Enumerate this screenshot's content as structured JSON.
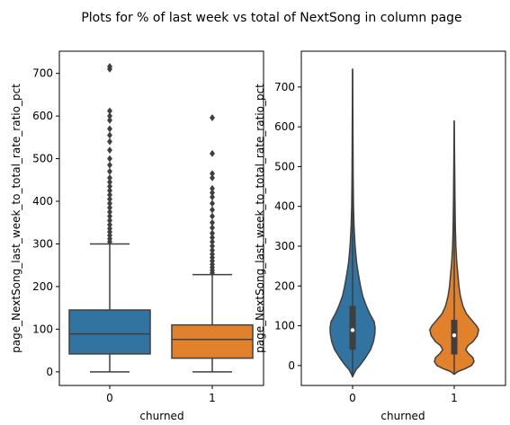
{
  "suptitle": "Plots for % of last week vs total of NextSong in column page",
  "chart_data": [
    {
      "type": "box",
      "xlabel": "churned",
      "ylabel": "page_NextSong_last_week_to_total_rate_ratio_pct",
      "categories": [
        "0",
        "1"
      ],
      "ylim": [
        -32,
        752
      ],
      "yticks": [
        0,
        100,
        200,
        300,
        400,
        500,
        600,
        700
      ],
      "colors": [
        "#3274a1",
        "#e1812c"
      ],
      "boxes": [
        {
          "category": "0",
          "whisker_low": 0,
          "q1": 42,
          "median": 89,
          "q3": 145,
          "whisker_high": 300,
          "outliers": [
            305,
            312,
            320,
            328,
            336,
            345,
            355,
            365,
            375,
            385,
            395,
            405,
            415,
            425,
            435,
            445,
            455,
            470,
            485,
            500,
            520,
            540,
            555,
            570,
            590,
            600,
            612,
            710,
            716
          ]
        },
        {
          "category": "1",
          "whisker_low": 0,
          "q1": 32,
          "median": 76,
          "q3": 110,
          "whisker_high": 228,
          "outliers": [
            232,
            238,
            245,
            252,
            260,
            268,
            276,
            285,
            295,
            305,
            315,
            325,
            338,
            350,
            365,
            380,
            395,
            410,
            420,
            430,
            455,
            465,
            512,
            596
          ]
        }
      ]
    },
    {
      "type": "violin",
      "xlabel": "churned",
      "ylabel": "page_NextSong_last_week_to_total_rate_ratio_pct",
      "categories": [
        "0",
        "1"
      ],
      "ylim": [
        -50,
        790
      ],
      "yticks": [
        0,
        100,
        200,
        300,
        400,
        500,
        600,
        700
      ],
      "colors": [
        "#3274a1",
        "#e1812c"
      ],
      "violins": [
        {
          "category": "0",
          "min": -28,
          "max": 745,
          "q1": 40,
          "median": 89,
          "q3": 150,
          "density": [
            [
              -28,
              0
            ],
            [
              -20,
              0.04
            ],
            [
              -10,
              0.1
            ],
            [
              0,
              0.2
            ],
            [
              20,
              0.36
            ],
            [
              40,
              0.5
            ],
            [
              60,
              0.58
            ],
            [
              80,
              0.62
            ],
            [
              95,
              0.625
            ],
            [
              110,
              0.6
            ],
            [
              130,
              0.48
            ],
            [
              150,
              0.38
            ],
            [
              175,
              0.28
            ],
            [
              200,
              0.22
            ],
            [
              230,
              0.16
            ],
            [
              260,
              0.11
            ],
            [
              300,
              0.07
            ],
            [
              350,
              0.04
            ],
            [
              400,
              0.025
            ],
            [
              480,
              0.015
            ],
            [
              560,
              0.011
            ],
            [
              640,
              0.007
            ],
            [
              745,
              0
            ]
          ]
        },
        {
          "category": "1",
          "min": -22,
          "max": 615,
          "q1": 28,
          "median": 76,
          "q3": 115,
          "density": [
            [
              -22,
              0
            ],
            [
              -15,
              0.1
            ],
            [
              -8,
              0.3
            ],
            [
              0,
              0.48
            ],
            [
              10,
              0.55
            ],
            [
              20,
              0.52
            ],
            [
              30,
              0.4
            ],
            [
              40,
              0.32
            ],
            [
              50,
              0.38
            ],
            [
              60,
              0.52
            ],
            [
              75,
              0.64
            ],
            [
              90,
              0.68
            ],
            [
              100,
              0.62
            ],
            [
              115,
              0.48
            ],
            [
              130,
              0.34
            ],
            [
              150,
              0.24
            ],
            [
              175,
              0.17
            ],
            [
              200,
              0.13
            ],
            [
              230,
              0.1
            ],
            [
              260,
              0.07
            ],
            [
              300,
              0.045
            ],
            [
              350,
              0.03
            ],
            [
              420,
              0.02
            ],
            [
              500,
              0.012
            ],
            [
              615,
              0
            ]
          ]
        }
      ]
    }
  ]
}
